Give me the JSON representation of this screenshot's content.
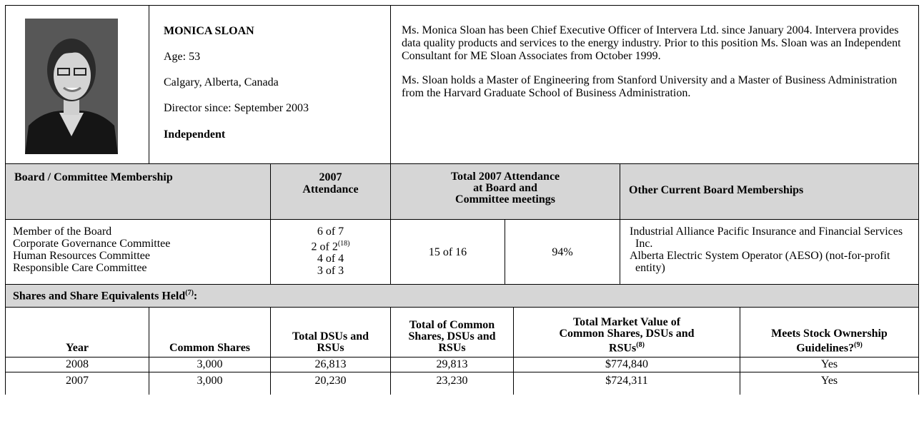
{
  "profile": {
    "name": "MONICA SLOAN",
    "age": "Age: 53",
    "location": "Calgary, Alberta, Canada",
    "director_since": "Director since: September 2003",
    "status": "Independent",
    "bio": [
      "Ms. Monica Sloan has been Chief Executive Officer of Intervera Ltd. since January 2004. Intervera provides data quality products and services to the energy industry. Prior to this position Ms. Sloan was an Independent Consultant for ME Sloan Associates from October 1999.",
      "Ms. Sloan holds a Master of Engineering from Stanford University and a Master of Business Administration from the Harvard Graduate School of Business Administration."
    ]
  },
  "membership": {
    "headers": [
      "Board / Committee Membership",
      "2007 Attendance",
      "Total 2007 Attendance at Board and Committee meetings",
      "Other Current Board Memberships"
    ],
    "committees": [
      {
        "name": "Member of the Board",
        "attendance": "6 of 7"
      },
      {
        "name": "Corporate Governance Committee",
        "attendance": "2 of 2",
        "note": "(18)"
      },
      {
        "name": "Human Resources Committee",
        "attendance": "4 of 4"
      },
      {
        "name": "Responsible Care Committee",
        "attendance": "3 of 3"
      }
    ],
    "total_attendance": "15 of 16",
    "total_percent": "94%",
    "other_boards": [
      "Industrial Alliance Pacific Insurance and Financial Services Inc.",
      "Alberta Electric System Operator (AESO) (not-for-profit entity)"
    ]
  },
  "shares": {
    "title": "Shares and Share Equivalents Held",
    "title_note": "(7)",
    "title_suffix": ":",
    "headers": [
      {
        "text": "Year"
      },
      {
        "text": "Common Shares"
      },
      {
        "text": "Total DSUs and RSUs"
      },
      {
        "text": "Total of Common Shares, DSUs and RSUs"
      },
      {
        "text": "Total Market Value of Common Shares, DSUs and RSUs",
        "note": "(8)"
      },
      {
        "text": "Meets Stock Ownership Guidelines?",
        "note": "(9)"
      }
    ],
    "rows": [
      [
        "2008",
        "3,000",
        "26,813",
        "29,813",
        "$774,840",
        "Yes"
      ],
      [
        "2007",
        "3,000",
        "20,230",
        "23,230",
        "$724,311",
        "Yes"
      ]
    ]
  }
}
